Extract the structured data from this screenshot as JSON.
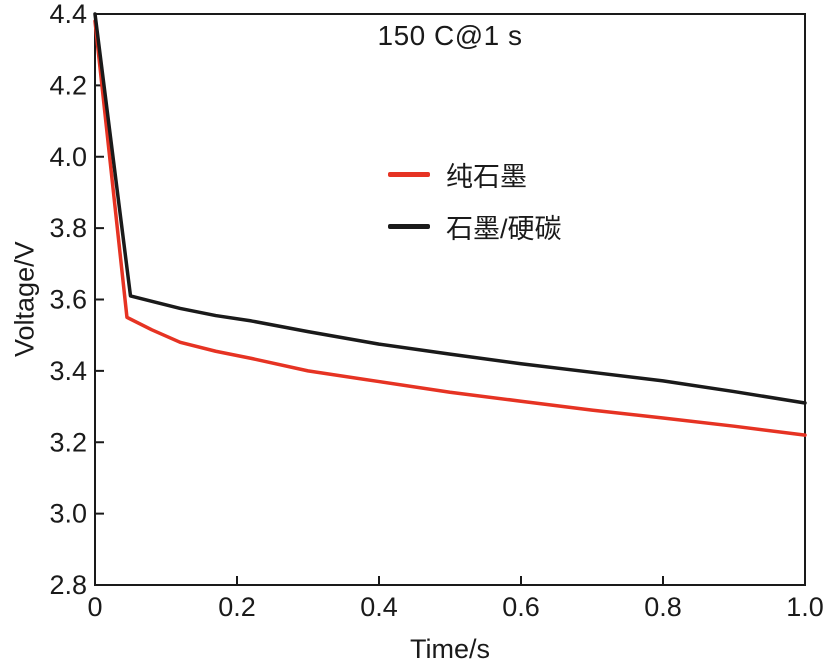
{
  "chart_data": {
    "type": "line",
    "title": "150 C@1 s",
    "xlabel": "Time/s",
    "ylabel": "Voltage/V",
    "xlim": [
      0,
      1.0
    ],
    "ylim": [
      2.8,
      4.4
    ],
    "xticks": [
      0,
      0.2,
      0.4,
      0.6,
      0.8,
      1.0
    ],
    "xtick_labels": [
      "0",
      "0.2",
      "0.4",
      "0.6",
      "0.8",
      "1.0"
    ],
    "yticks": [
      2.8,
      3.0,
      3.2,
      3.4,
      3.6,
      3.8,
      4.0,
      4.2,
      4.4
    ],
    "ytick_labels": [
      "2.8",
      "3.0",
      "3.2",
      "3.4",
      "3.6",
      "3.8",
      "4.0",
      "4.2",
      "4.4"
    ],
    "grid": false,
    "legend_position": "upper-center",
    "frame_color": "#1a1a1a",
    "line_width": 3.5,
    "series": [
      {
        "name": "纯石墨",
        "color": "#e63323",
        "x": [
          0,
          0.045,
          0.08,
          0.12,
          0.17,
          0.22,
          0.3,
          0.4,
          0.5,
          0.6,
          0.7,
          0.8,
          0.9,
          1.0
        ],
        "y": [
          4.38,
          3.55,
          3.515,
          3.48,
          3.455,
          3.435,
          3.4,
          3.37,
          3.34,
          3.315,
          3.29,
          3.268,
          3.245,
          3.22
        ]
      },
      {
        "name": "石墨/硬碳",
        "color": "#1a1a1a",
        "x": [
          0,
          0.05,
          0.08,
          0.12,
          0.17,
          0.22,
          0.3,
          0.4,
          0.5,
          0.6,
          0.7,
          0.8,
          0.9,
          1.0
        ],
        "y": [
          4.4,
          3.61,
          3.595,
          3.575,
          3.555,
          3.54,
          3.51,
          3.475,
          3.447,
          3.42,
          3.396,
          3.372,
          3.342,
          3.31
        ]
      }
    ]
  }
}
